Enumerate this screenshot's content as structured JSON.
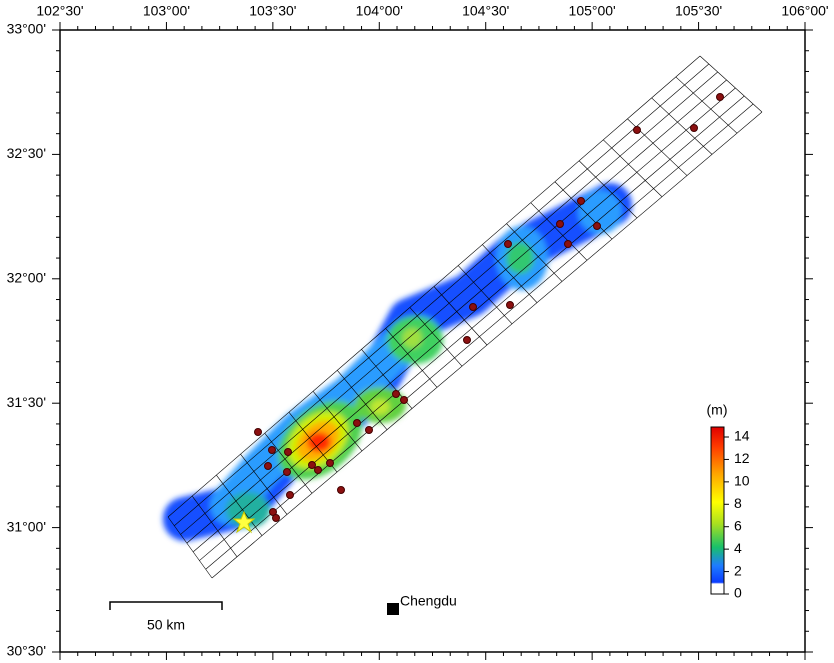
{
  "map": {
    "x_ticks": [
      "102°30'",
      "103°00'",
      "103°30'",
      "104°00'",
      "104°30'",
      "105°00'",
      "105°30'",
      "106°00'"
    ],
    "y_ticks": [
      "33°00'",
      "32°30'",
      "32°00'",
      "31°30'",
      "31°00'",
      "30°30'"
    ],
    "colorbar": {
      "unit": "(m)",
      "ticks": [
        0,
        2,
        4,
        6,
        8,
        10,
        12,
        14
      ]
    },
    "scale_bar": "50 km",
    "city": "Chengdu"
  }
}
